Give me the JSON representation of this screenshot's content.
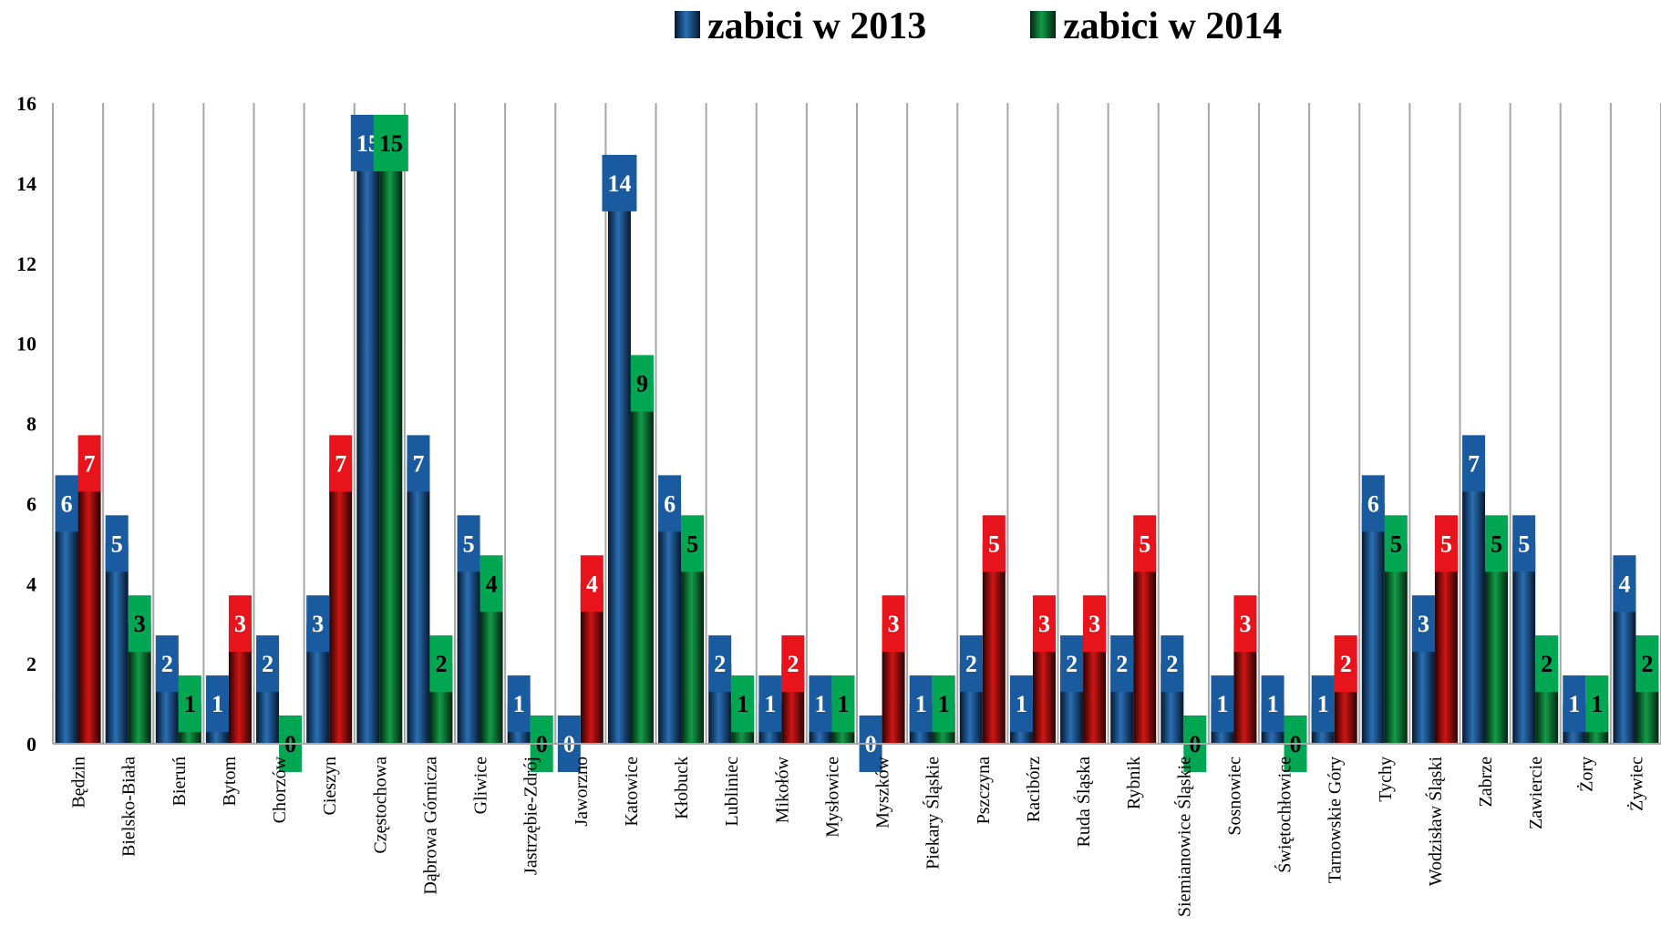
{
  "chart_data": {
    "type": "bar",
    "ylim": [
      0,
      16
    ],
    "yticks": [
      "0",
      "2",
      "4",
      "6",
      "8",
      "10",
      "12",
      "14",
      "16"
    ],
    "grid": "vertical separators",
    "legend_position": "top",
    "categories": [
      "Będzin",
      "Bielsko-Biała",
      "Bieruń",
      "Bytom",
      "Chorzów",
      "Cieszyn",
      "Częstochowa",
      "Dąbrowa Górnicza",
      "Gliwice",
      "Jastrzębie-Zdrój",
      "Jaworzno",
      "Katowice",
      "Kłobuck",
      "Lubliniec",
      "Mikołów",
      "Mysłowice",
      "Myszków",
      "Piekary Śląskie",
      "Pszczyna",
      "Racibórz",
      "Ruda Śląska",
      "Rybnik",
      "Siemianowice Śląskie",
      "Sosnowiec",
      "Świętochłowice",
      "Tarnowskie Góry",
      "Tychy",
      "Wodzisław Śląski",
      "Zabrze",
      "Zawiercie",
      "Żory",
      "Żywiec"
    ],
    "series": [
      {
        "name": "zabici w 2013",
        "color": "#1a5a9e",
        "values": [
          6,
          5,
          2,
          1,
          2,
          3,
          15,
          7,
          5,
          1,
          0,
          14,
          6,
          2,
          1,
          1,
          0,
          1,
          2,
          1,
          2,
          2,
          2,
          1,
          1,
          1,
          6,
          3,
          7,
          5,
          1,
          4
        ]
      },
      {
        "name": "zabici w 2014",
        "color": "#00a651",
        "values": [
          7,
          3,
          1,
          3,
          0,
          7,
          15,
          2,
          4,
          0,
          4,
          9,
          5,
          1,
          2,
          1,
          3,
          1,
          5,
          3,
          3,
          5,
          0,
          3,
          0,
          2,
          5,
          5,
          5,
          2,
          1,
          2
        ]
      }
    ],
    "increase_color": "#e8141b"
  }
}
